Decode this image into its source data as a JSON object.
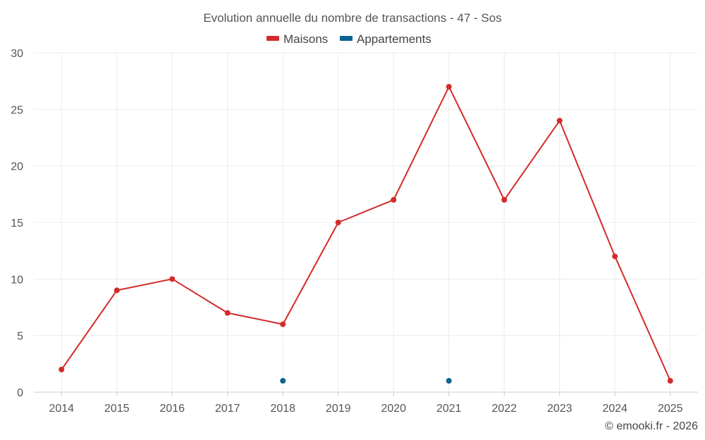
{
  "chart_data": {
    "type": "line",
    "title": "Evolution annuelle du nombre de transactions - 47 - Sos",
    "categories": [
      "2014",
      "2015",
      "2016",
      "2017",
      "2018",
      "2019",
      "2020",
      "2021",
      "2022",
      "2023",
      "2024",
      "2025"
    ],
    "series": [
      {
        "name": "Maisons",
        "color": "#d32a2a",
        "line": true,
        "values": [
          2,
          9,
          10,
          7,
          6,
          15,
          17,
          27,
          17,
          24,
          12,
          1
        ]
      },
      {
        "name": "Appartements",
        "color": "#0e6295",
        "line": false,
        "values": [
          null,
          null,
          null,
          null,
          1,
          null,
          null,
          1,
          null,
          null,
          null,
          null
        ]
      }
    ],
    "ylim": [
      0,
      30
    ],
    "yticks": [
      "0",
      "5",
      "10",
      "15",
      "20",
      "25",
      "30"
    ],
    "xlabel": "",
    "ylabel": "",
    "grid": true,
    "legend_position": "top-center"
  },
  "credit": "© emooki.fr - 2026"
}
